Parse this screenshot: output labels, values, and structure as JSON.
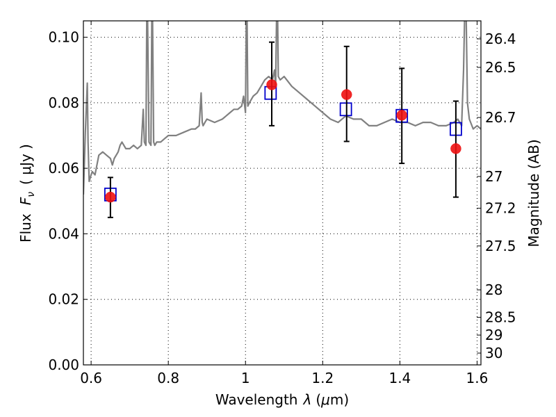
{
  "chart_data": {
    "type": "line",
    "xlabel_prefix": "Wavelength",
    "xlabel_symbol": "λ",
    "xlabel_unit_open": "(",
    "xlabel_unit_mu": "μ",
    "xlabel_unit_rest": "m)",
    "ylabel_prefix": "Flux",
    "ylabel_symbol": "F",
    "ylabel_symbol_sub": "ν",
    "ylabel_unit": "( μJy )",
    "y2label": "Magnitude (AB)",
    "xlim": [
      0.58,
      1.61
    ],
    "ylim": [
      0.0,
      0.105
    ],
    "grid": true,
    "x_ticks": [
      0.6,
      0.8,
      1.0,
      1.2,
      1.4,
      1.6
    ],
    "x_tick_labels": [
      "0.6",
      "0.8",
      "1",
      "1.2",
      "1.4",
      "1.6"
    ],
    "y_ticks": [
      0.0,
      0.02,
      0.04,
      0.06,
      0.08,
      0.1
    ],
    "y_tick_labels": [
      "0.00",
      "0.02",
      "0.04",
      "0.06",
      "0.08",
      "0.10"
    ],
    "y2_ticks": [
      {
        "label": "26.4",
        "flux": 0.0995
      },
      {
        "label": "26.5",
        "flux": 0.0908
      },
      {
        "label": "26.7",
        "flux": 0.0755
      },
      {
        "label": "27",
        "flux": 0.0575
      },
      {
        "label": "27.2",
        "flux": 0.0478
      },
      {
        "label": "27.5",
        "flux": 0.0363
      },
      {
        "label": "28",
        "flux": 0.0229
      },
      {
        "label": "28.5",
        "flux": 0.0145
      },
      {
        "label": "29",
        "flux": 0.0091
      },
      {
        "label": "30",
        "flux": 0.0036
      }
    ],
    "series": [
      {
        "style": "template-spectrum",
        "color": "#808080",
        "x": [
          0.58,
          0.585,
          0.59,
          0.592,
          0.595,
          0.6,
          0.603,
          0.61,
          0.62,
          0.63,
          0.64,
          0.65,
          0.655,
          0.66,
          0.665,
          0.67,
          0.675,
          0.68,
          0.69,
          0.7,
          0.71,
          0.72,
          0.73,
          0.735,
          0.738,
          0.742,
          0.745,
          0.75,
          0.755,
          0.758,
          0.762,
          0.765,
          0.77,
          0.78,
          0.79,
          0.8,
          0.82,
          0.84,
          0.86,
          0.87,
          0.88,
          0.885,
          0.888,
          0.89,
          0.895,
          0.9,
          0.92,
          0.94,
          0.95,
          0.96,
          0.97,
          0.98,
          0.99,
          0.995,
          1.0,
          1.003,
          1.006,
          1.01,
          1.015,
          1.02,
          1.03,
          1.04,
          1.05,
          1.06,
          1.07,
          1.075,
          1.078,
          1.082,
          1.085,
          1.09,
          1.1,
          1.12,
          1.14,
          1.16,
          1.18,
          1.2,
          1.22,
          1.24,
          1.26,
          1.28,
          1.3,
          1.32,
          1.34,
          1.36,
          1.38,
          1.4,
          1.42,
          1.44,
          1.46,
          1.48,
          1.5,
          1.52,
          1.54,
          1.55,
          1.56,
          1.565,
          1.57,
          1.575,
          1.58,
          1.59,
          1.6,
          1.61
        ],
        "y": [
          0.052,
          0.071,
          0.086,
          0.068,
          0.056,
          0.058,
          0.059,
          0.058,
          0.064,
          0.065,
          0.064,
          0.063,
          0.061,
          0.063,
          0.064,
          0.065,
          0.067,
          0.068,
          0.066,
          0.066,
          0.067,
          0.066,
          0.067,
          0.078,
          0.068,
          0.067,
          0.12,
          0.068,
          0.067,
          0.12,
          0.068,
          0.067,
          0.068,
          0.068,
          0.069,
          0.07,
          0.07,
          0.071,
          0.072,
          0.072,
          0.073,
          0.083,
          0.074,
          0.073,
          0.074,
          0.075,
          0.074,
          0.075,
          0.076,
          0.077,
          0.078,
          0.078,
          0.079,
          0.082,
          0.077,
          0.12,
          0.079,
          0.08,
          0.081,
          0.082,
          0.083,
          0.085,
          0.087,
          0.088,
          0.087,
          0.09,
          0.085,
          0.12,
          0.088,
          0.087,
          0.088,
          0.085,
          0.083,
          0.081,
          0.079,
          0.077,
          0.075,
          0.074,
          0.076,
          0.075,
          0.075,
          0.073,
          0.073,
          0.074,
          0.075,
          0.074,
          0.074,
          0.073,
          0.074,
          0.074,
          0.073,
          0.073,
          0.074,
          0.075,
          0.073,
          0.09,
          0.12,
          0.08,
          0.075,
          0.072,
          0.073,
          0.072
        ]
      },
      {
        "style": "open-blue-square",
        "color": "#0000cc",
        "x": [
          0.65,
          1.065,
          1.26,
          1.405,
          1.545
        ],
        "y": [
          0.052,
          0.083,
          0.078,
          0.076,
          0.072
        ]
      },
      {
        "style": "red-filled-circle-with-errorbars",
        "color": "#ee1111",
        "x": [
          0.65,
          1.068,
          1.262,
          1.405,
          1.545
        ],
        "y": [
          0.0512,
          0.0855,
          0.0825,
          0.0762,
          0.066
        ],
        "yerr_low": [
          0.045,
          0.073,
          0.0682,
          0.0615,
          0.0512
        ],
        "yerr_high": [
          0.0572,
          0.0985,
          0.0972,
          0.0905,
          0.0805
        ]
      }
    ]
  }
}
